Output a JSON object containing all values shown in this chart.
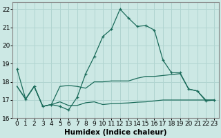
{
  "xlabel": "Humidex (Indice chaleur)",
  "background_color": "#cce8e4",
  "grid_color": "#b0d4d0",
  "line_color": "#1a6b5a",
  "xlim": [
    -0.5,
    23.5
  ],
  "ylim": [
    16.0,
    22.4
  ],
  "yticks": [
    16,
    17,
    18,
    19,
    20,
    21,
    22
  ],
  "xtick_labels": [
    "0",
    "1",
    "2",
    "3",
    "4",
    "5",
    "6",
    "7",
    "8",
    "9",
    "10",
    "11",
    "12",
    "13",
    "14",
    "15",
    "16",
    "17",
    "18",
    "19",
    "20",
    "21",
    "22",
    "23"
  ],
  "line1_x": [
    0,
    1,
    2,
    3,
    4,
    5,
    6,
    7,
    8,
    9,
    10,
    11,
    12,
    13,
    14,
    15,
    16,
    17,
    18,
    19,
    20,
    21,
    22,
    23
  ],
  "line1_y": [
    18.7,
    17.05,
    17.75,
    16.65,
    16.75,
    16.65,
    16.45,
    17.15,
    18.45,
    19.4,
    20.5,
    20.9,
    22.0,
    21.5,
    21.05,
    21.1,
    20.85,
    19.2,
    18.5,
    18.5,
    17.6,
    17.5,
    16.95,
    17.0
  ],
  "line2_x": [
    0,
    1,
    2,
    3,
    4,
    5,
    6,
    7,
    8,
    9,
    10,
    11,
    12,
    13,
    14,
    15,
    16,
    17,
    18,
    19,
    20,
    21,
    22,
    23
  ],
  "line2_y": [
    17.75,
    17.05,
    17.75,
    16.65,
    16.75,
    17.75,
    17.8,
    17.75,
    17.65,
    18.0,
    18.0,
    18.05,
    18.05,
    18.05,
    18.2,
    18.3,
    18.3,
    18.35,
    18.4,
    18.45,
    17.6,
    17.5,
    17.0,
    17.0
  ],
  "line3_x": [
    0,
    1,
    2,
    3,
    4,
    5,
    6,
    7,
    8,
    9,
    10,
    11,
    12,
    13,
    14,
    15,
    16,
    17,
    18,
    19,
    20,
    21,
    22,
    23
  ],
  "line3_y": [
    17.75,
    17.05,
    17.75,
    16.65,
    16.75,
    16.9,
    16.7,
    16.7,
    16.85,
    16.9,
    16.75,
    16.8,
    16.82,
    16.84,
    16.88,
    16.9,
    16.95,
    17.0,
    17.0,
    17.0,
    17.0,
    17.0,
    17.0,
    17.0
  ],
  "tick_fontsize": 6.5,
  "axis_fontsize": 7.5
}
